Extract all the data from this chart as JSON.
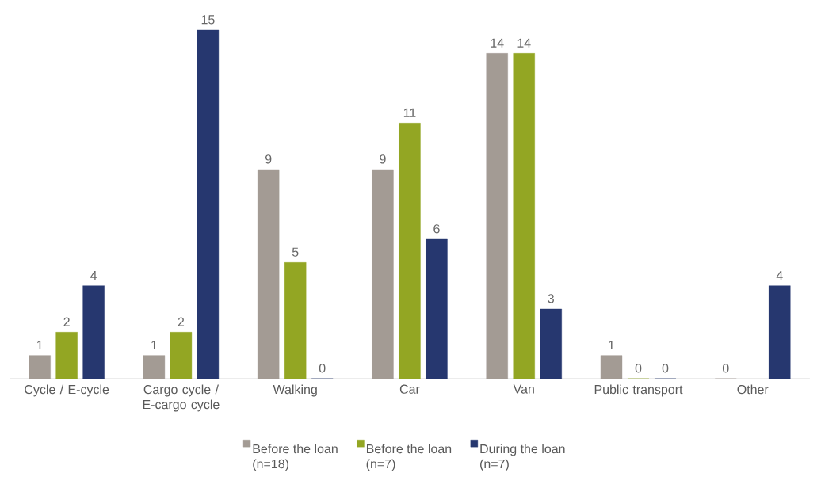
{
  "chart_data": {
    "type": "bar",
    "legend": "bottom",
    "data_labels": true,
    "categories": [
      "Cycle / E-cycle",
      "Cargo cycle / E-cargo cycle",
      "Walking",
      "Car",
      "Van",
      "Public transport",
      "Other"
    ],
    "series": [
      {
        "name": "Before the loan (n=18)",
        "color": "#a39b94",
        "values": [
          1,
          1,
          9,
          9,
          14,
          1,
          0
        ]
      },
      {
        "name": "Before the loan (n=7)",
        "color": "#93a623",
        "values": [
          2,
          2,
          5,
          11,
          14,
          0,
          null
        ]
      },
      {
        "name": "During the loan (n=7)",
        "color": "#26376f",
        "values": [
          4,
          15,
          0,
          6,
          3,
          0,
          4
        ]
      }
    ]
  }
}
